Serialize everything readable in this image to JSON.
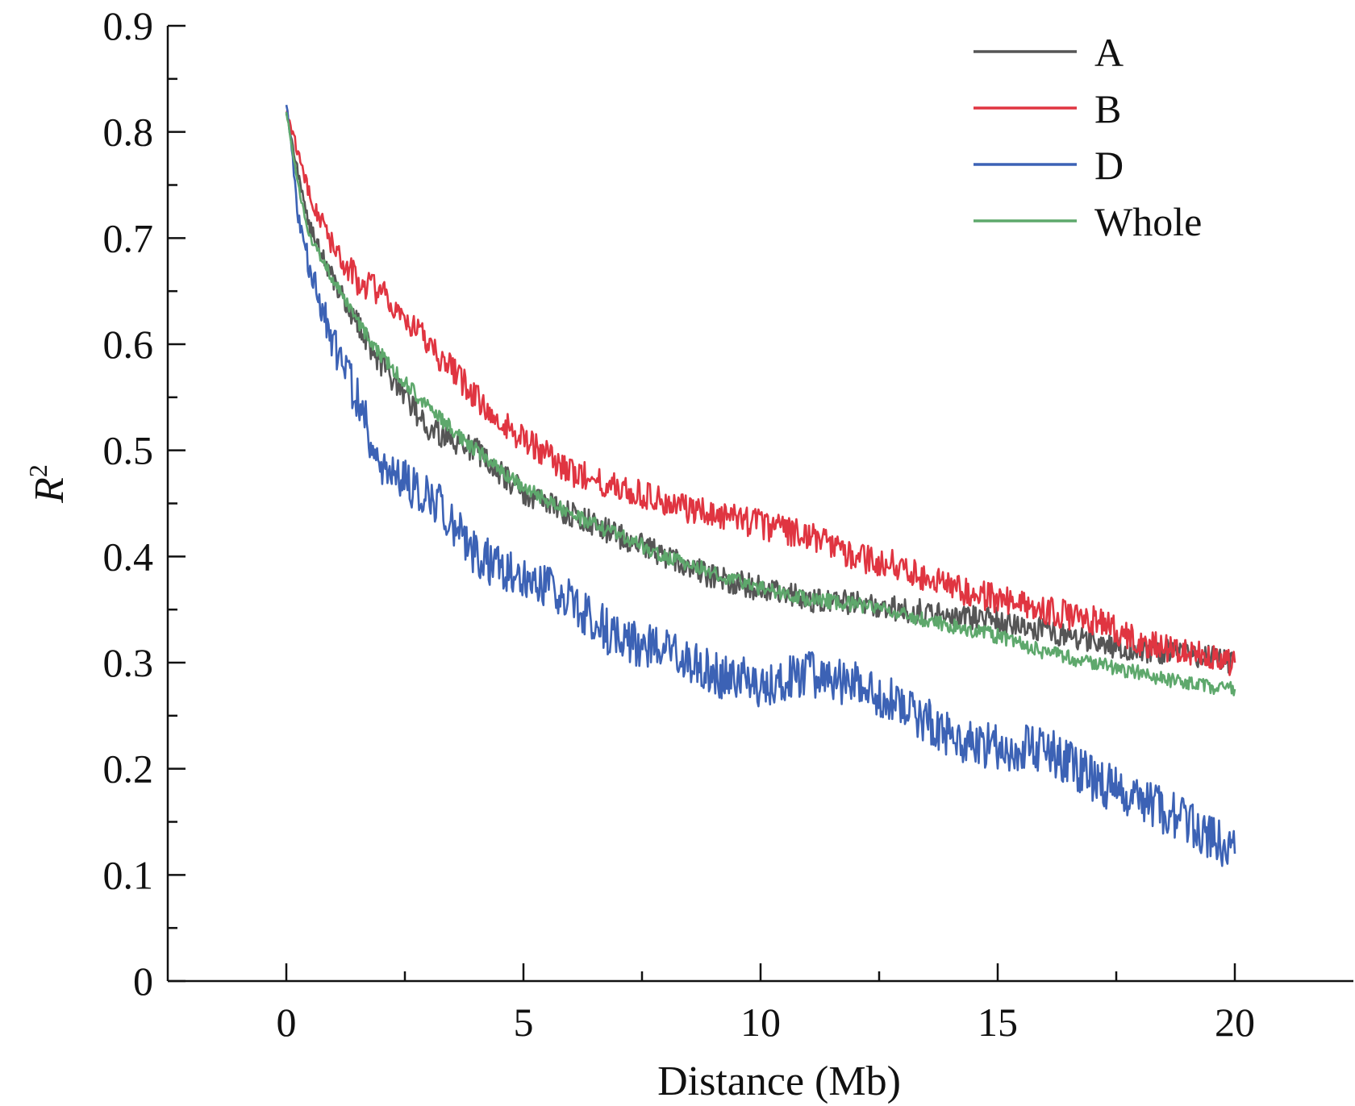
{
  "chart_data": {
    "type": "line",
    "xlabel": "Distance (Mb)",
    "ylabel": "R",
    "ylabel_superscript": "2",
    "xlim": [
      -2.5,
      22.5
    ],
    "ylim": [
      0,
      0.9
    ],
    "xticks": [
      0,
      5,
      10,
      15,
      20
    ],
    "xtick_labels": [
      "0",
      "5",
      "10",
      "15",
      "20"
    ],
    "yticks": [
      0,
      0.1,
      0.2,
      0.3,
      0.4,
      0.5,
      0.6,
      0.7,
      0.8,
      0.9
    ],
    "ytick_labels": [
      "0",
      "0.1",
      "0.2",
      "0.3",
      "0.4",
      "0.5",
      "0.6",
      "0.7",
      "0.8",
      "0.9"
    ],
    "legend_position": "top-right",
    "grid": false,
    "x": [
      0,
      0.25,
      0.5,
      1,
      1.5,
      2,
      3,
      4,
      5,
      6,
      7,
      8,
      9,
      10,
      11,
      12,
      13,
      14,
      15,
      16,
      17,
      18,
      19,
      20
    ],
    "series": [
      {
        "name": "A",
        "color": "#555555",
        "values": [
          0.82,
          0.76,
          0.71,
          0.66,
          0.62,
          0.58,
          0.52,
          0.5,
          0.46,
          0.44,
          0.42,
          0.4,
          0.38,
          0.37,
          0.36,
          0.355,
          0.35,
          0.345,
          0.34,
          0.33,
          0.32,
          0.31,
          0.31,
          0.3
        ]
      },
      {
        "name": "B",
        "color": "#e03541",
        "values": [
          0.82,
          0.78,
          0.74,
          0.69,
          0.66,
          0.65,
          0.6,
          0.55,
          0.51,
          0.48,
          0.465,
          0.45,
          0.44,
          0.43,
          0.42,
          0.4,
          0.39,
          0.37,
          0.36,
          0.35,
          0.34,
          0.32,
          0.31,
          0.3
        ]
      },
      {
        "name": "D",
        "color": "#3c62b5",
        "values": [
          0.83,
          0.72,
          0.67,
          0.6,
          0.55,
          0.48,
          0.46,
          0.4,
          0.38,
          0.36,
          0.32,
          0.31,
          0.29,
          0.28,
          0.29,
          0.28,
          0.26,
          0.23,
          0.22,
          0.22,
          0.19,
          0.17,
          0.15,
          0.12
        ]
      },
      {
        "name": "Whole",
        "color": "#5ea86c",
        "values": [
          0.82,
          0.75,
          0.7,
          0.66,
          0.62,
          0.59,
          0.54,
          0.5,
          0.465,
          0.44,
          0.42,
          0.4,
          0.385,
          0.37,
          0.36,
          0.355,
          0.345,
          0.335,
          0.325,
          0.31,
          0.3,
          0.29,
          0.28,
          0.275
        ]
      }
    ]
  }
}
